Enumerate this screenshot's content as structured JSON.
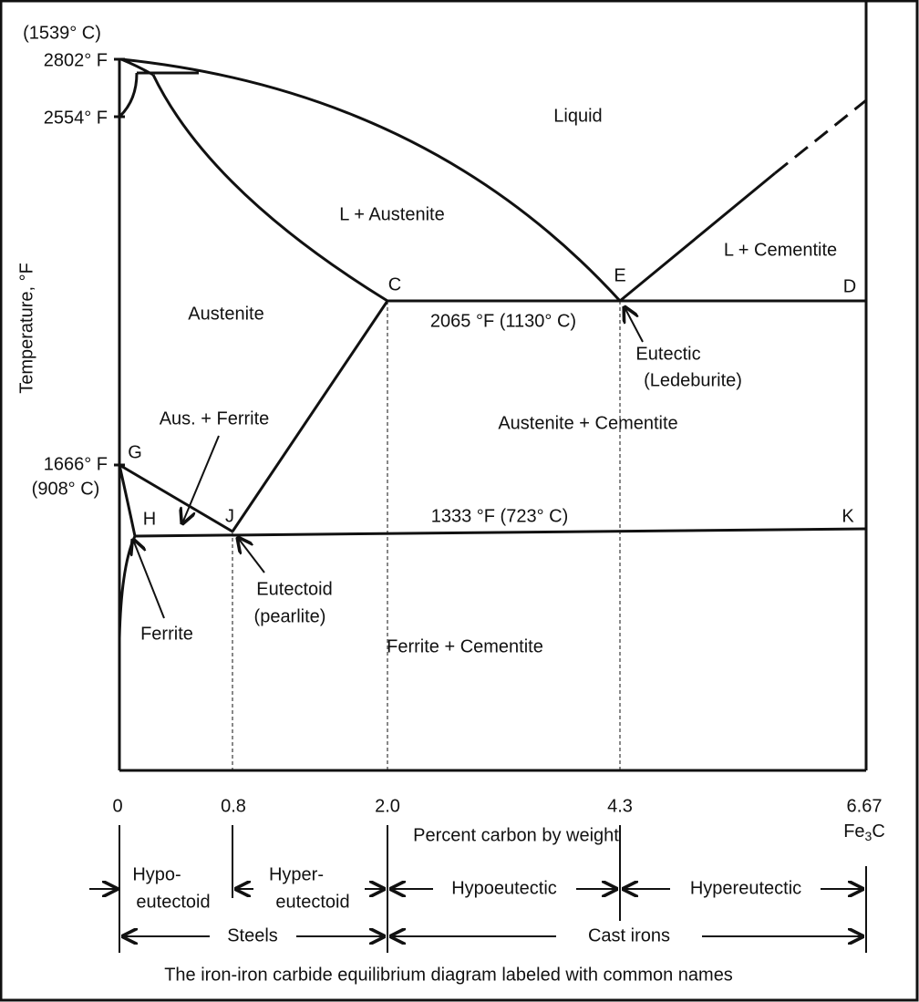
{
  "temperatures": {
    "top_celsius": "(1539° C)",
    "top_fahrenheit": "2802° F",
    "delta": "2554° F",
    "g_fahrenheit": "1666° F",
    "g_celsius": "(908° C)"
  },
  "axis": {
    "y_title": "Temperature, °F",
    "x_title": "Percent carbon by weight",
    "x_ticks": [
      "0",
      "0.8",
      "2.0",
      "4.3",
      "6.67"
    ],
    "fe3c_parts": [
      "Fe",
      "3",
      "C"
    ]
  },
  "regions": {
    "liquid": "Liquid",
    "l_austenite": "L + Austenite",
    "l_cementite": "L + Cementite",
    "austenite": "Austenite",
    "aus_ferrite": "Aus. + Ferrite",
    "austenite_cementite": "Austenite + Cementite",
    "ferrite_cementite": "Ferrite + Cementite",
    "ferrite": "Ferrite"
  },
  "points": {
    "c": "C",
    "e": "E",
    "d": "D",
    "g": "G",
    "h": "H",
    "j": "J",
    "k": "K"
  },
  "lines": {
    "eutectic_temp": "2065 °F (1130° C)",
    "eutectoid_temp": "1333 °F (723° C)"
  },
  "annotations": {
    "eutectic": "Eutectic",
    "ledeburite": "(Ledeburite)",
    "eutectoid": "Eutectoid",
    "pearlite": "(pearlite)"
  },
  "classification": {
    "hypo_1": "Hypo-",
    "hypo_2": "eutectoid",
    "hyper_1": "Hyper-",
    "hyper_2": "eutectoid",
    "hypoeutectic": "Hypoeutectic",
    "hypereutectic": "Hypereutectic",
    "steels": "Steels",
    "cast_irons": "Cast irons"
  },
  "caption": "The iron-iron carbide equilibrium diagram labeled with common names"
}
